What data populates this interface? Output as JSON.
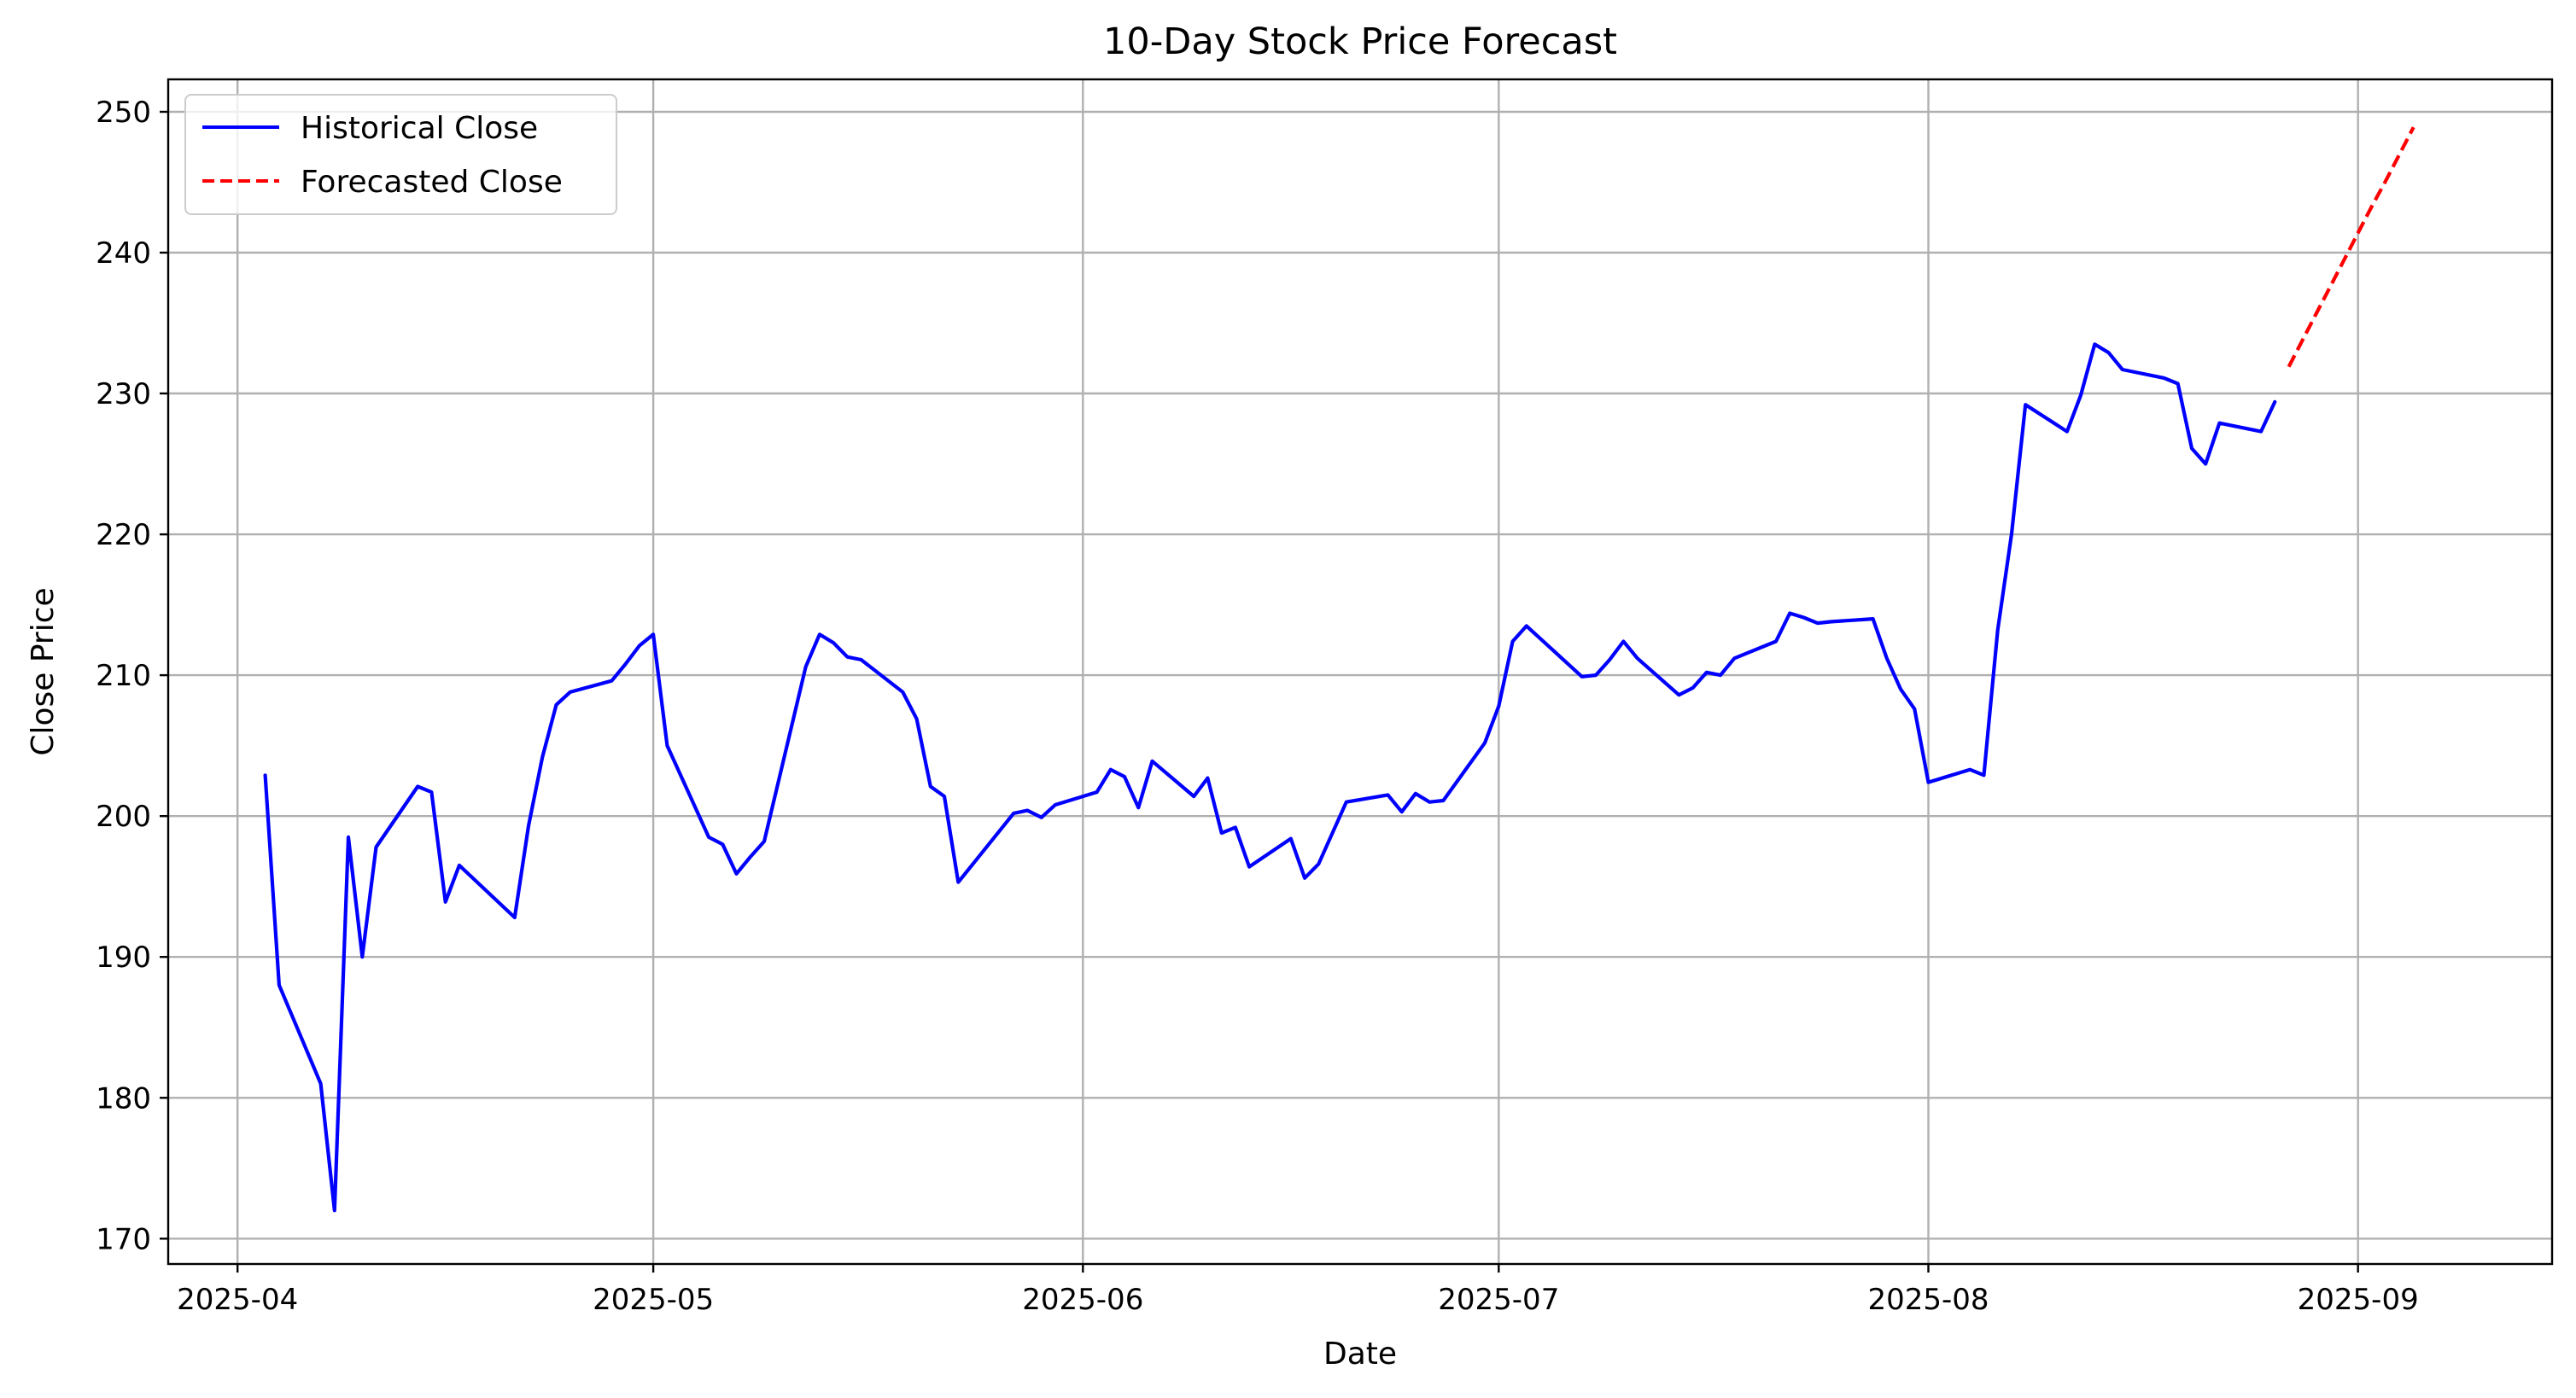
{
  "chart_data": {
    "type": "line",
    "title": "10-Day Stock Price Forecast",
    "xlabel": "Date",
    "ylabel": "Close Price",
    "x_axis_type": "date",
    "xlim": [
      "2025-03-27",
      "2025-09-15"
    ],
    "ylim": [
      168.2,
      252.3
    ],
    "x_ticks": [
      {
        "date": "2025-04-01",
        "label": "2025-04"
      },
      {
        "date": "2025-05-01",
        "label": "2025-05"
      },
      {
        "date": "2025-06-01",
        "label": "2025-06"
      },
      {
        "date": "2025-07-01",
        "label": "2025-07"
      },
      {
        "date": "2025-08-01",
        "label": "2025-08"
      },
      {
        "date": "2025-09-01",
        "label": "2025-09"
      }
    ],
    "y_ticks": [
      170,
      180,
      190,
      200,
      210,
      220,
      230,
      240,
      250
    ],
    "grid": true,
    "legend_position": "top-left",
    "series": [
      {
        "name": "Historical Close",
        "color": "#0000ff",
        "line_style": "solid",
        "points": [
          [
            "2025-04-03",
            202.9
          ],
          [
            "2025-04-04",
            188.0
          ],
          [
            "2025-04-07",
            181.0
          ],
          [
            "2025-04-08",
            172.0
          ],
          [
            "2025-04-09",
            198.5
          ],
          [
            "2025-04-10",
            190.0
          ],
          [
            "2025-04-11",
            197.8
          ],
          [
            "2025-04-14",
            202.1
          ],
          [
            "2025-04-15",
            201.7
          ],
          [
            "2025-04-16",
            193.9
          ],
          [
            "2025-04-17",
            196.5
          ],
          [
            "2025-04-21",
            192.8
          ],
          [
            "2025-04-22",
            199.3
          ],
          [
            "2025-04-23",
            204.2
          ],
          [
            "2025-04-24",
            207.9
          ],
          [
            "2025-04-25",
            208.8
          ],
          [
            "2025-04-28",
            209.6
          ],
          [
            "2025-04-29",
            210.8
          ],
          [
            "2025-04-30",
            212.1
          ],
          [
            "2025-05-01",
            212.9
          ],
          [
            "2025-05-02",
            205.0
          ],
          [
            "2025-05-05",
            198.5
          ],
          [
            "2025-05-06",
            198.0
          ],
          [
            "2025-05-07",
            195.9
          ],
          [
            "2025-05-08",
            197.1
          ],
          [
            "2025-05-09",
            198.2
          ],
          [
            "2025-05-12",
            210.6
          ],
          [
            "2025-05-13",
            212.9
          ],
          [
            "2025-05-14",
            212.3
          ],
          [
            "2025-05-15",
            211.3
          ],
          [
            "2025-05-16",
            211.1
          ],
          [
            "2025-05-19",
            208.8
          ],
          [
            "2025-05-20",
            206.9
          ],
          [
            "2025-05-21",
            202.1
          ],
          [
            "2025-05-22",
            201.4
          ],
          [
            "2025-05-23",
            195.3
          ],
          [
            "2025-05-27",
            200.2
          ],
          [
            "2025-05-28",
            200.4
          ],
          [
            "2025-05-29",
            199.9
          ],
          [
            "2025-05-30",
            200.8
          ],
          [
            "2025-06-02",
            201.7
          ],
          [
            "2025-06-03",
            203.3
          ],
          [
            "2025-06-04",
            202.8
          ],
          [
            "2025-06-05",
            200.6
          ],
          [
            "2025-06-06",
            203.9
          ],
          [
            "2025-06-09",
            201.4
          ],
          [
            "2025-06-10",
            202.7
          ],
          [
            "2025-06-11",
            198.8
          ],
          [
            "2025-06-12",
            199.2
          ],
          [
            "2025-06-13",
            196.4
          ],
          [
            "2025-06-16",
            198.4
          ],
          [
            "2025-06-17",
            195.6
          ],
          [
            "2025-06-18",
            196.6
          ],
          [
            "2025-06-20",
            201.0
          ],
          [
            "2025-06-23",
            201.5
          ],
          [
            "2025-06-24",
            200.3
          ],
          [
            "2025-06-25",
            201.6
          ],
          [
            "2025-06-26",
            201.0
          ],
          [
            "2025-06-27",
            201.1
          ],
          [
            "2025-06-30",
            205.2
          ],
          [
            "2025-07-01",
            207.8
          ],
          [
            "2025-07-02",
            212.4
          ],
          [
            "2025-07-03",
            213.5
          ],
          [
            "2025-07-07",
            209.9
          ],
          [
            "2025-07-08",
            210.0
          ],
          [
            "2025-07-09",
            211.1
          ],
          [
            "2025-07-10",
            212.4
          ],
          [
            "2025-07-11",
            211.2
          ],
          [
            "2025-07-14",
            208.6
          ],
          [
            "2025-07-15",
            209.1
          ],
          [
            "2025-07-16",
            210.2
          ],
          [
            "2025-07-17",
            210.0
          ],
          [
            "2025-07-18",
            211.2
          ],
          [
            "2025-07-21",
            212.4
          ],
          [
            "2025-07-22",
            214.4
          ],
          [
            "2025-07-23",
            214.1
          ],
          [
            "2025-07-24",
            213.7
          ],
          [
            "2025-07-25",
            213.8
          ],
          [
            "2025-07-28",
            214.0
          ],
          [
            "2025-07-29",
            211.2
          ],
          [
            "2025-07-30",
            209.0
          ],
          [
            "2025-07-31",
            207.6
          ],
          [
            "2025-08-01",
            202.4
          ],
          [
            "2025-08-04",
            203.3
          ],
          [
            "2025-08-05",
            202.9
          ],
          [
            "2025-08-06",
            213.2
          ],
          [
            "2025-08-07",
            220.0
          ],
          [
            "2025-08-08",
            229.2
          ],
          [
            "2025-08-11",
            227.3
          ],
          [
            "2025-08-12",
            229.9
          ],
          [
            "2025-08-13",
            233.5
          ],
          [
            "2025-08-14",
            232.9
          ],
          [
            "2025-08-15",
            231.7
          ],
          [
            "2025-08-18",
            231.1
          ],
          [
            "2025-08-19",
            230.7
          ],
          [
            "2025-08-20",
            226.1
          ],
          [
            "2025-08-21",
            225.0
          ],
          [
            "2025-08-22",
            227.9
          ],
          [
            "2025-08-25",
            227.3
          ],
          [
            "2025-08-26",
            229.4
          ]
        ]
      },
      {
        "name": "Forecasted Close",
        "color": "#ff0000",
        "line_style": "dashed",
        "points": [
          [
            "2025-08-27",
            231.9
          ],
          [
            "2025-08-28",
            233.8
          ],
          [
            "2025-08-29",
            235.7
          ],
          [
            "2025-08-30",
            237.6
          ],
          [
            "2025-08-31",
            239.5
          ],
          [
            "2025-09-01",
            241.4
          ],
          [
            "2025-09-02",
            243.3
          ],
          [
            "2025-09-03",
            245.1
          ],
          [
            "2025-09-04",
            247.0
          ],
          [
            "2025-09-05",
            248.9
          ]
        ]
      }
    ]
  }
}
